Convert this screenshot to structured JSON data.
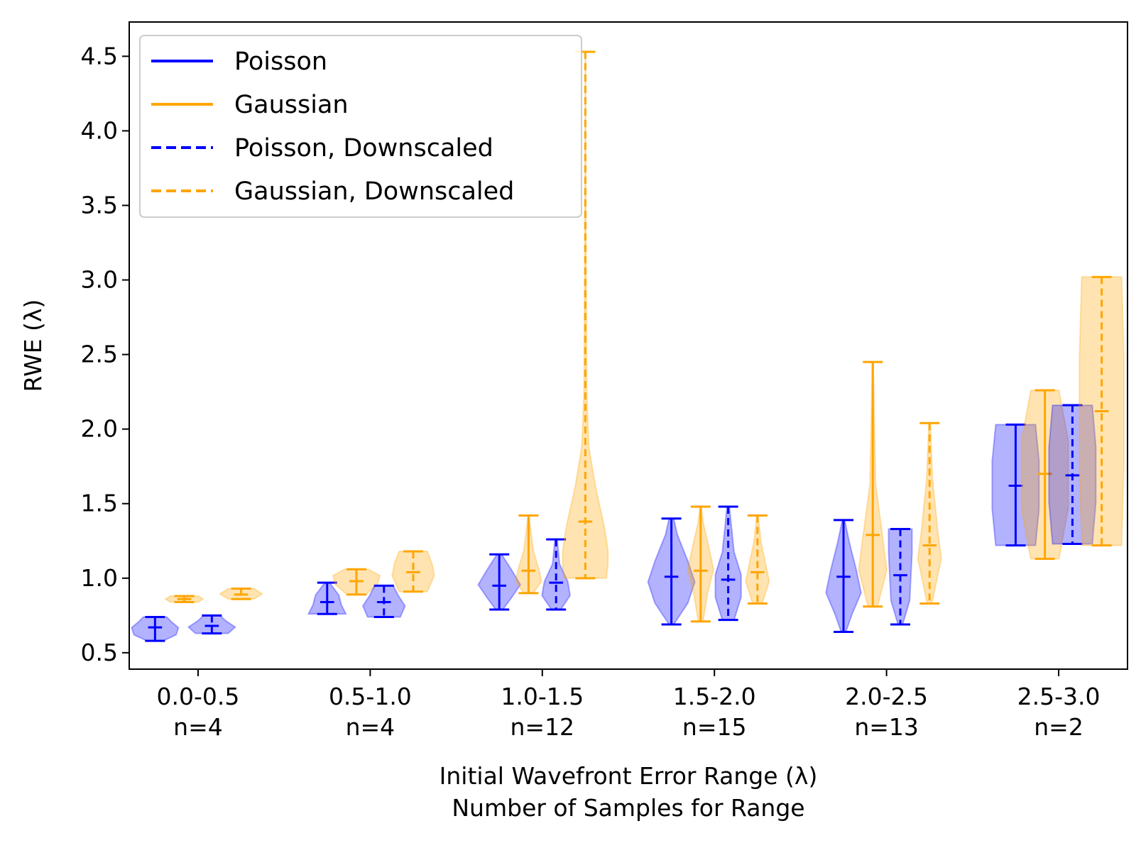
{
  "chart_data": {
    "type": "violin",
    "xlabel": "Initial Wavefront Error Range (λ)",
    "xlabel2": "Number of Samples for Range",
    "ylabel": "RWE (λ)",
    "ylim": [
      0.39,
      4.73
    ],
    "yticks": [
      "0.5",
      "1.0",
      "1.5",
      "2.0",
      "2.5",
      "3.0",
      "3.5",
      "4.0",
      "4.5"
    ],
    "legend_position": "upper-left",
    "colors": {
      "poisson": "#0000ff",
      "gaussian": "#ffa500"
    },
    "categories": [
      {
        "range": "0.0-0.5",
        "n": "n=4"
      },
      {
        "range": "0.5-1.0",
        "n": "n=4"
      },
      {
        "range": "1.0-1.5",
        "n": "n=12"
      },
      {
        "range": "1.5-2.0",
        "n": "n=15"
      },
      {
        "range": "2.0-2.5",
        "n": "n=13"
      },
      {
        "range": "2.5-3.0",
        "n": "n=2"
      }
    ],
    "series": [
      {
        "name": "Poisson",
        "color": "#0000ff",
        "dashed": false,
        "offset": -0.25,
        "violins": [
          {
            "min": 0.58,
            "median": 0.67,
            "max": 0.74,
            "shape": [
              [
                0,
                0.35
              ],
              [
                0.25,
                0.9
              ],
              [
                0.55,
                1
              ],
              [
                0.8,
                0.7
              ],
              [
                1,
                0.5
              ]
            ]
          },
          {
            "min": 0.76,
            "median": 0.84,
            "max": 0.97,
            "shape": [
              [
                0,
                0.8
              ],
              [
                0.3,
                0.6
              ],
              [
                0.6,
                0.5
              ],
              [
                0.8,
                0.3
              ],
              [
                1,
                0.1
              ]
            ]
          },
          {
            "min": 0.79,
            "median": 0.95,
            "max": 1.16,
            "shape": [
              [
                0,
                0.15
              ],
              [
                0.2,
                0.5
              ],
              [
                0.45,
                0.9
              ],
              [
                0.7,
                0.55
              ],
              [
                1,
                0.1
              ]
            ]
          },
          {
            "min": 0.69,
            "median": 1.01,
            "max": 1.4,
            "shape": [
              [
                0,
                0.1
              ],
              [
                0.2,
                0.7
              ],
              [
                0.4,
                1
              ],
              [
                0.6,
                0.7
              ],
              [
                0.85,
                0.25
              ],
              [
                1,
                0.1
              ]
            ]
          },
          {
            "min": 0.64,
            "median": 1.01,
            "max": 1.39,
            "shape": [
              [
                0,
                0.1
              ],
              [
                0.15,
                0.35
              ],
              [
                0.35,
                0.75
              ],
              [
                0.55,
                0.55
              ],
              [
                0.8,
                0.25
              ],
              [
                1,
                0.05
              ]
            ]
          },
          {
            "min": 1.22,
            "median": 1.62,
            "max": 2.03,
            "shape": [
              [
                0,
                0.85
              ],
              [
                0.3,
                1
              ],
              [
                0.7,
                1
              ],
              [
                1,
                0.85
              ]
            ]
          }
        ]
      },
      {
        "name": "Gaussian",
        "color": "#ffa500",
        "dashed": false,
        "offset": -0.08,
        "violins": [
          {
            "min": 0.84,
            "median": 0.86,
            "max": 0.88,
            "shape": [
              [
                0,
                0.6
              ],
              [
                0.5,
                0.8
              ],
              [
                1,
                0.6
              ]
            ]
          },
          {
            "min": 0.89,
            "median": 0.98,
            "max": 1.06,
            "shape": [
              [
                0,
                0.4
              ],
              [
                0.4,
                0.9
              ],
              [
                0.75,
                1
              ],
              [
                1,
                0.5
              ]
            ]
          },
          {
            "min": 0.9,
            "median": 1.05,
            "max": 1.42,
            "shape": [
              [
                0,
                0.2
              ],
              [
                0.15,
                0.55
              ],
              [
                0.3,
                0.45
              ],
              [
                0.55,
                0.2
              ],
              [
                1,
                0.02
              ]
            ]
          },
          {
            "min": 0.71,
            "median": 1.05,
            "max": 1.48,
            "shape": [
              [
                0,
                0.1
              ],
              [
                0.25,
                0.3
              ],
              [
                0.45,
                0.55
              ],
              [
                0.6,
                0.4
              ],
              [
                0.85,
                0.12
              ],
              [
                1,
                0.02
              ]
            ]
          },
          {
            "min": 0.81,
            "median": 1.29,
            "max": 2.45,
            "shape": [
              [
                0,
                0.2
              ],
              [
                0.15,
                0.6
              ],
              [
                0.3,
                0.4
              ],
              [
                0.5,
                0.12
              ],
              [
                1,
                0.02
              ]
            ]
          },
          {
            "min": 1.13,
            "median": 1.7,
            "max": 2.26,
            "shape": [
              [
                0,
                0.6
              ],
              [
                0.3,
                1
              ],
              [
                0.7,
                1
              ],
              [
                1,
                0.6
              ]
            ]
          }
        ]
      },
      {
        "name": "Poisson, Downscaled",
        "color": "#0000ff",
        "dashed": true,
        "offset": 0.08,
        "violins": [
          {
            "min": 0.63,
            "median": 0.68,
            "max": 0.75,
            "shape": [
              [
                0,
                0.7
              ],
              [
                0.35,
                1
              ],
              [
                0.7,
                0.6
              ],
              [
                1,
                0.35
              ]
            ]
          },
          {
            "min": 0.74,
            "median": 0.84,
            "max": 0.95,
            "shape": [
              [
                0,
                0.7
              ],
              [
                0.35,
                0.9
              ],
              [
                0.7,
                0.6
              ],
              [
                1,
                0.4
              ]
            ]
          },
          {
            "min": 0.79,
            "median": 0.97,
            "max": 1.26,
            "shape": [
              [
                0,
                0.2
              ],
              [
                0.2,
                0.6
              ],
              [
                0.4,
                0.5
              ],
              [
                0.65,
                0.15
              ],
              [
                1,
                0.05
              ]
            ]
          },
          {
            "min": 0.72,
            "median": 0.99,
            "max": 1.48,
            "shape": [
              [
                0,
                0.25
              ],
              [
                0.2,
                0.55
              ],
              [
                0.4,
                0.55
              ],
              [
                0.6,
                0.25
              ],
              [
                1,
                0.05
              ]
            ]
          },
          {
            "min": 0.69,
            "median": 1.02,
            "max": 1.33,
            "shape": [
              [
                0,
                0.1
              ],
              [
                0.25,
                0.4
              ],
              [
                0.5,
                0.45
              ],
              [
                0.75,
                0.5
              ],
              [
                1,
                0.5
              ]
            ]
          },
          {
            "min": 1.23,
            "median": 1.69,
            "max": 2.16,
            "shape": [
              [
                0,
                0.85
              ],
              [
                0.3,
                1
              ],
              [
                0.7,
                1
              ],
              [
                1,
                0.85
              ]
            ]
          }
        ]
      },
      {
        "name": "Gaussian, Downscaled",
        "color": "#ffa500",
        "dashed": true,
        "offset": 0.25,
        "violins": [
          {
            "min": 0.86,
            "median": 0.89,
            "max": 0.93,
            "shape": [
              [
                0,
                0.55
              ],
              [
                0.5,
                0.9
              ],
              [
                1,
                0.55
              ]
            ]
          },
          {
            "min": 0.91,
            "median": 1.04,
            "max": 1.18,
            "shape": [
              [
                0,
                0.6
              ],
              [
                0.4,
                0.9
              ],
              [
                0.7,
                0.8
              ],
              [
                1,
                0.6
              ]
            ]
          },
          {
            "min": 1.0,
            "median": 1.38,
            "max": 4.53,
            "shape": [
              [
                0,
                0.9
              ],
              [
                0.04,
                1
              ],
              [
                0.09,
                0.85
              ],
              [
                0.17,
                0.45
              ],
              [
                0.25,
                0.15
              ],
              [
                0.35,
                0.06
              ],
              [
                0.6,
                0.03
              ],
              [
                1,
                0.01
              ]
            ]
          },
          {
            "min": 0.83,
            "median": 1.04,
            "max": 1.42,
            "shape": [
              [
                0,
                0.2
              ],
              [
                0.25,
                0.5
              ],
              [
                0.45,
                0.35
              ],
              [
                0.7,
                0.15
              ],
              [
                1,
                0.03
              ]
            ]
          },
          {
            "min": 0.83,
            "median": 1.22,
            "max": 2.04,
            "shape": [
              [
                0,
                0.1
              ],
              [
                0.25,
                0.5
              ],
              [
                0.4,
                0.35
              ],
              [
                0.7,
                0.12
              ],
              [
                1,
                0.03
              ]
            ]
          },
          {
            "min": 1.22,
            "median": 2.12,
            "max": 3.02,
            "shape": [
              [
                0,
                0.85
              ],
              [
                0.3,
                0.95
              ],
              [
                0.7,
                0.95
              ],
              [
                1,
                0.85
              ]
            ]
          }
        ]
      }
    ]
  }
}
